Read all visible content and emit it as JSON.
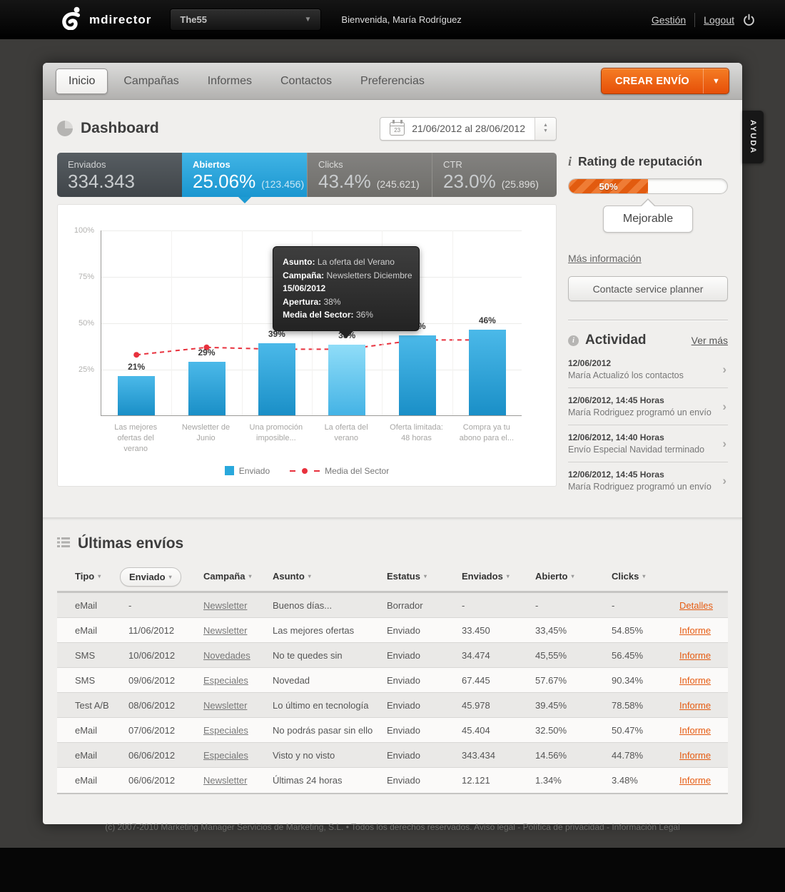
{
  "header": {
    "logo": "mdirector",
    "account": "The55",
    "welcome": "Bienvenida, María Rodríguez",
    "gestion": "Gestión",
    "logout": "Logout"
  },
  "nav": {
    "tabs": [
      "Inicio",
      "Campañas",
      "Informes",
      "Contactos",
      "Preferencias"
    ],
    "active_tab": "Inicio",
    "create_button": "CREAR ENVÍO"
  },
  "help_tab": "AYUDA",
  "dashboard": {
    "title": "Dashboard",
    "date_range": "21/06/2012 al 28/06/2012",
    "calendar_day": "23",
    "tiles": [
      {
        "label": "Enviados",
        "value": "334.343",
        "extra": "",
        "state": "dark"
      },
      {
        "label": "Abiertos",
        "value": "25.06%",
        "extra": "(123.456)",
        "state": "active"
      },
      {
        "label": "Clicks",
        "value": "43.4%",
        "extra": "(245.621)",
        "state": "gray"
      },
      {
        "label": "CTR",
        "value": "23.0%",
        "extra": "(25.896)",
        "state": "gray"
      }
    ]
  },
  "chart_data": {
    "type": "bar",
    "categories": [
      "Las mejores ofertas del verano",
      "Newsletter de Junio",
      "Una promoción imposible...",
      "La oferta del verano",
      "Oferta limitada: 48 horas",
      "Compra ya tu abono para el..."
    ],
    "series": [
      {
        "name": "Enviado",
        "type": "bar",
        "values": [
          21,
          29,
          39,
          38,
          43,
          46
        ]
      },
      {
        "name": "Media del Sector",
        "type": "line",
        "values": [
          33,
          37,
          36,
          36,
          41,
          41
        ]
      }
    ],
    "highlighted_bar_index": 3,
    "y_ticks": [
      25,
      50,
      75,
      100
    ],
    "ylim": [
      0,
      100
    ],
    "grid": true,
    "legend_position": "bottom",
    "tooltip": {
      "anchor_index": 3,
      "lines": [
        {
          "label": "Asunto:",
          "value": "La oferta del Verano"
        },
        {
          "label": "Campaña:",
          "value": "Newsletters Diciembre"
        },
        {
          "label": "15/06/2012",
          "value": ""
        },
        {
          "label": "Apertura:",
          "value": "38%"
        },
        {
          "label": "Media del Sector:",
          "value": "36%"
        }
      ]
    },
    "colors": {
      "bar": "#29a8dc",
      "bar_highlight": "#6fcdf1",
      "line": "#e8313d"
    }
  },
  "reputation": {
    "title": "Rating de reputación",
    "percent_label": "50%",
    "percent_value": 50,
    "status": "Mejorable",
    "more_info": "Más información",
    "contact_button": "Contacte service planner",
    "accent_color": "#e7690f"
  },
  "activity": {
    "title": "Actividad",
    "see_more": "Ver más",
    "items": [
      {
        "date": "12/06/2012",
        "text": "María Actualizó los contactos"
      },
      {
        "date": "12/06/2012, 14:45 Horas",
        "text": "María Rodriguez programó un envío"
      },
      {
        "date": "12/06/2012, 14:40 Horas",
        "text": "Envío Especial Navidad terminado"
      },
      {
        "date": "12/06/2012, 14:45 Horas",
        "text": "María Rodriguez programó un envío"
      }
    ]
  },
  "table": {
    "title": "Últimas envíos",
    "columns": [
      "Tipo",
      "Enviado",
      "Campaña",
      "Asunto",
      "Estatus",
      "Enviados",
      "Abierto",
      "Clicks"
    ],
    "selected_filter": "Enviado",
    "rows": [
      {
        "tipo": "eMail",
        "enviado": "-",
        "campana": "Newsletter",
        "asunto": "Buenos días...",
        "estatus": "Borrador",
        "enviados": "-",
        "abierto": "-",
        "clicks": "-",
        "action": "Detalles"
      },
      {
        "tipo": "eMail",
        "enviado": "11/06/2012",
        "campana": "Newsletter",
        "asunto": "Las mejores ofertas",
        "estatus": "Enviado",
        "enviados": "33.450",
        "abierto": "33,45%",
        "clicks": "54.85%",
        "action": "Informe"
      },
      {
        "tipo": "SMS",
        "enviado": "10/06/2012",
        "campana": "Novedades",
        "asunto": "No te quedes sin",
        "estatus": "Enviado",
        "enviados": "34.474",
        "abierto": "45,55%",
        "clicks": "56.45%",
        "action": "Informe"
      },
      {
        "tipo": "SMS",
        "enviado": "09/06/2012",
        "campana": "Especiales",
        "asunto": "Novedad",
        "estatus": "Enviado",
        "enviados": "67.445",
        "abierto": "57.67%",
        "clicks": "90.34%",
        "action": "Informe"
      },
      {
        "tipo": "Test A/B",
        "enviado": "08/06/2012",
        "campana": "Newsletter",
        "asunto": "Lo último en tecnología",
        "estatus": "Enviado",
        "enviados": "45.978",
        "abierto": "39.45%",
        "clicks": "78.58%",
        "action": "Informe"
      },
      {
        "tipo": "eMail",
        "enviado": "07/06/2012",
        "campana": "Especiales",
        "asunto": "No podrás pasar sin ello",
        "estatus": "Enviado",
        "enviados": "45.404",
        "abierto": "32.50%",
        "clicks": "50.47%",
        "action": "Informe"
      },
      {
        "tipo": "eMail",
        "enviado": "06/06/2012",
        "campana": "Especiales",
        "asunto": "Visto y no visto",
        "estatus": "Enviado",
        "enviados": "343.434",
        "abierto": "14.56%",
        "clicks": "44.78%",
        "action": "Informe"
      },
      {
        "tipo": "eMail",
        "enviado": "06/06/2012",
        "campana": "Newsletter",
        "asunto": "Últimas 24 horas",
        "estatus": "Enviado",
        "enviados": "12.121",
        "abierto": "1.34%",
        "clicks": "3.48%",
        "action": "Informe"
      }
    ]
  },
  "footer": "(c) 2007-2010 Marketing Manager Servicios de Marketing, S.L. • Todos los derechos reservados. Aviso legal - Política de privacidad - Información Legal"
}
